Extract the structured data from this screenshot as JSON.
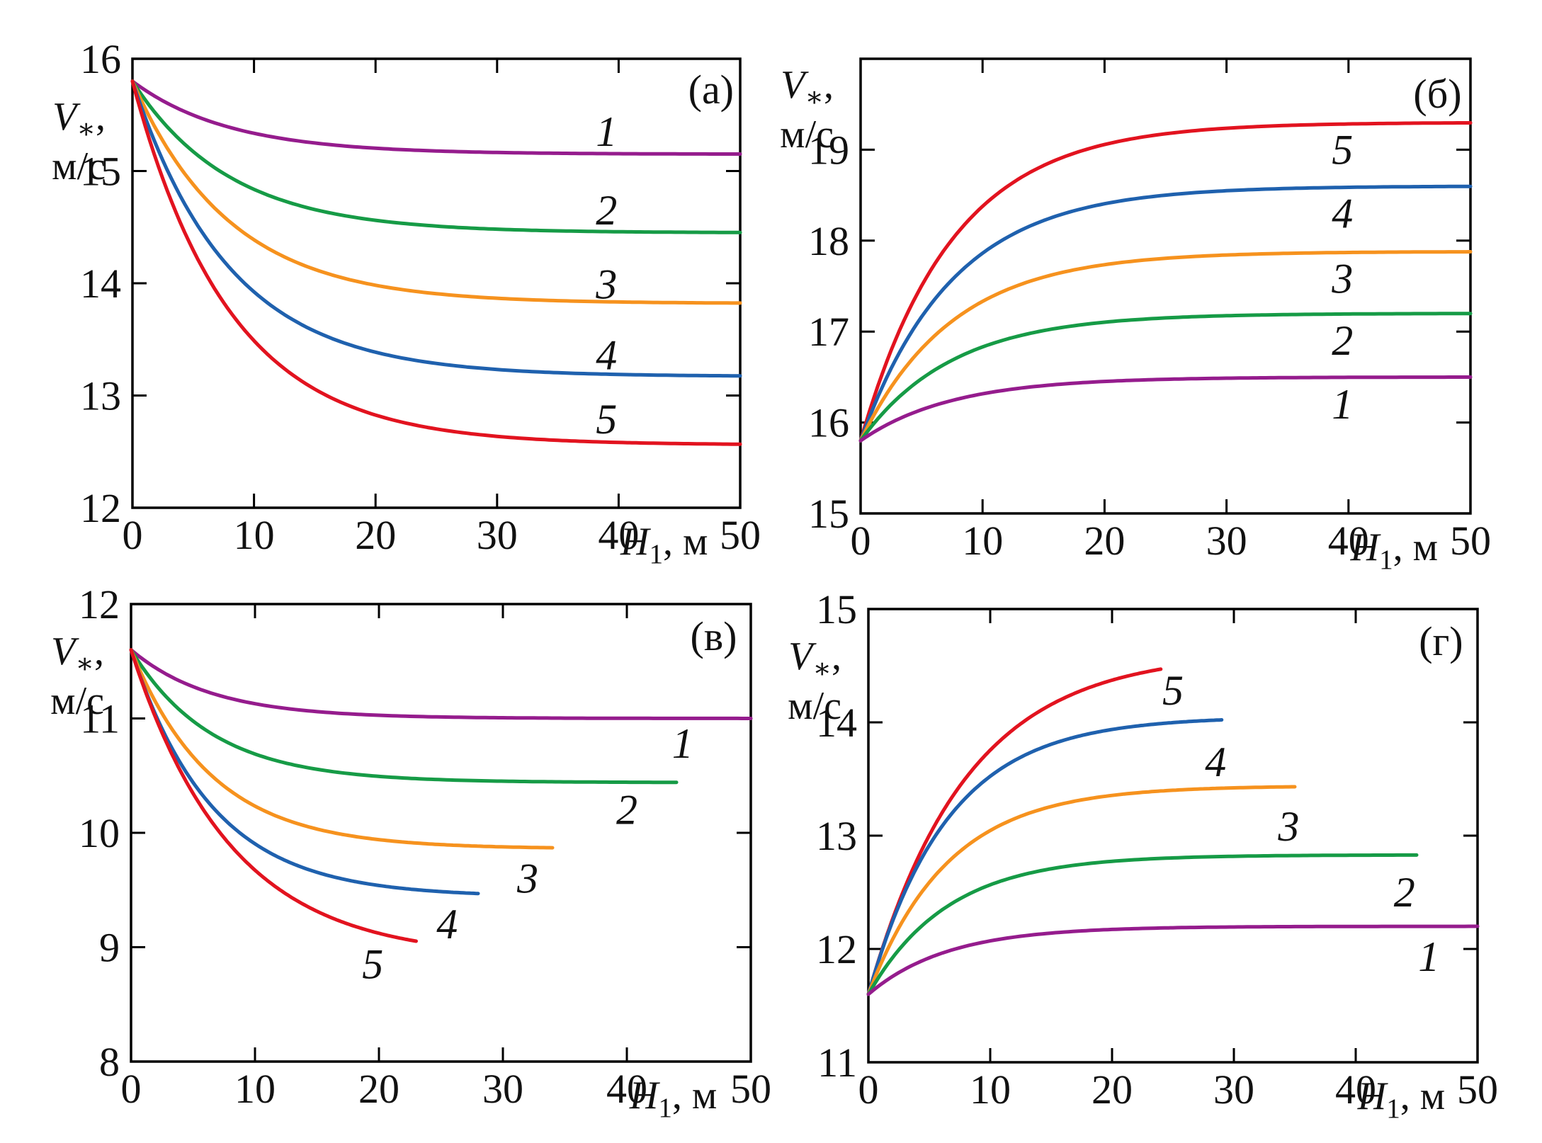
{
  "figure": {
    "background": "#ffffff"
  },
  "chart_data": [
    {
      "id": "a",
      "type": "line",
      "panel_label": "(а)",
      "panel_label_x": 47.6,
      "panel_label_y": 15.73,
      "ylabel": {
        "main": "V",
        "sub": "∗",
        "tail": ",",
        "line2": "м/с"
      },
      "xlabel": {
        "main": "H",
        "sub": "1",
        "tail": ", м"
      },
      "xlim": [
        0,
        50
      ],
      "ylim": [
        12,
        16
      ],
      "xticks": [
        0,
        10,
        20,
        30,
        40,
        50
      ],
      "yticks": [
        12,
        13,
        14,
        15,
        16
      ],
      "start_value": 15.8,
      "tau": 8,
      "series": [
        {
          "name": "1",
          "color": "#951C8D",
          "asymptote": 15.15,
          "x_end": 50,
          "label_x": 39,
          "label_y": 15.35
        },
        {
          "name": "2",
          "color": "#169B46",
          "asymptote": 14.45,
          "x_end": 50,
          "label_x": 39,
          "label_y": 14.65
        },
        {
          "name": "3",
          "color": "#F6921E",
          "asymptote": 13.82,
          "x_end": 50,
          "label_x": 39,
          "label_y": 13.99
        },
        {
          "name": "4",
          "color": "#1F61AE",
          "asymptote": 13.17,
          "x_end": 50,
          "label_x": 39,
          "label_y": 13.36
        },
        {
          "name": "5",
          "color": "#E2131F",
          "asymptote": 12.56,
          "x_end": 50,
          "label_x": 39,
          "label_y": 12.79
        }
      ]
    },
    {
      "id": "b",
      "type": "line",
      "panel_label": "(б)",
      "panel_label_x": 47.3,
      "panel_label_y": 19.62,
      "ylabel": {
        "main": "V",
        "sub": "∗",
        "tail": ",",
        "line2": "м/с"
      },
      "xlabel": {
        "main": "H",
        "sub": "1",
        "tail": ", м"
      },
      "xlim": [
        0,
        50
      ],
      "ylim": [
        15,
        20
      ],
      "xticks": [
        0,
        10,
        20,
        30,
        40,
        50
      ],
      "yticks": [
        15,
        16,
        17,
        18,
        19
      ],
      "start_value": 15.8,
      "tau": 7.5,
      "series": [
        {
          "name": "5",
          "color": "#E2131F",
          "asymptote": 19.3,
          "x_end": 50,
          "label_x": 39.5,
          "label_y": 19.0
        },
        {
          "name": "4",
          "color": "#1F61AE",
          "asymptote": 18.6,
          "x_end": 50,
          "label_x": 39.5,
          "label_y": 18.3
        },
        {
          "name": "3",
          "color": "#F6921E",
          "asymptote": 17.88,
          "x_end": 50,
          "label_x": 39.5,
          "label_y": 17.58
        },
        {
          "name": "2",
          "color": "#169B46",
          "asymptote": 17.2,
          "x_end": 50,
          "label_x": 39.5,
          "label_y": 16.9
        },
        {
          "name": "1",
          "color": "#951C8D",
          "asymptote": 16.5,
          "x_end": 50,
          "label_x": 39.5,
          "label_y": 16.2
        }
      ]
    },
    {
      "id": "v",
      "type": "line",
      "panel_label": "(в)",
      "panel_label_x": 47.0,
      "panel_label_y": 11.72,
      "ylabel": {
        "main": "V",
        "sub": "∗",
        "tail": ",",
        "line2": "м/с"
      },
      "xlabel": {
        "main": "H",
        "sub": "1",
        "tail": ", м"
      },
      "xlim": [
        0,
        50
      ],
      "ylim": [
        8,
        12
      ],
      "xticks": [
        0,
        10,
        20,
        30,
        40,
        50
      ],
      "yticks": [
        8,
        9,
        10,
        11,
        12
      ],
      "start_value": 11.6,
      "tau": 6.5,
      "series": [
        {
          "name": "1",
          "color": "#951C8D",
          "asymptote": 11.0,
          "x_end": 50,
          "label_x": 44.5,
          "label_y": 10.78
        },
        {
          "name": "2",
          "color": "#169B46",
          "asymptote": 10.44,
          "x_end": 44,
          "label_x": 40,
          "label_y": 10.2
        },
        {
          "name": "3",
          "color": "#F6921E",
          "asymptote": 9.86,
          "x_end": 34,
          "label_x": 32,
          "label_y": 9.6
        },
        {
          "name": "4",
          "color": "#1F61AE",
          "asymptote": 9.44,
          "x_end": 28,
          "label_x": 25.5,
          "label_y": 9.2
        },
        {
          "name": "5",
          "color": "#E2131F",
          "asymptote": 8.9,
          "x_end": 23,
          "tau": 8,
          "label_x": 19.5,
          "label_y": 8.85
        }
      ]
    },
    {
      "id": "g",
      "type": "line",
      "panel_label": "(г)",
      "panel_label_x": 47.0,
      "panel_label_y": 14.72,
      "ylabel": {
        "main": "V",
        "sub": "∗",
        "tail": ",",
        "line2": "м/с"
      },
      "xlabel": {
        "main": "H",
        "sub": "1",
        "tail": ", м"
      },
      "xlim": [
        0,
        50
      ],
      "ylim": [
        11,
        15
      ],
      "xticks": [
        0,
        10,
        20,
        30,
        40,
        50
      ],
      "yticks": [
        11,
        12,
        13,
        14,
        15
      ],
      "start_value": 11.6,
      "tau": 6.5,
      "series": [
        {
          "name": "5",
          "color": "#E2131F",
          "asymptote": 14.62,
          "x_end": 24,
          "tau": 8,
          "label_x": 25,
          "label_y": 14.28
        },
        {
          "name": "4",
          "color": "#1F61AE",
          "asymptote": 14.05,
          "x_end": 29,
          "label_x": 28.5,
          "label_y": 13.65
        },
        {
          "name": "3",
          "color": "#F6921E",
          "asymptote": 13.44,
          "x_end": 35,
          "label_x": 34.5,
          "label_y": 13.08
        },
        {
          "name": "2",
          "color": "#169B46",
          "asymptote": 12.83,
          "x_end": 45,
          "label_x": 44,
          "label_y": 12.5
        },
        {
          "name": "1",
          "color": "#951C8D",
          "asymptote": 12.2,
          "x_end": 50,
          "label_x": 46,
          "label_y": 11.93
        }
      ]
    }
  ]
}
